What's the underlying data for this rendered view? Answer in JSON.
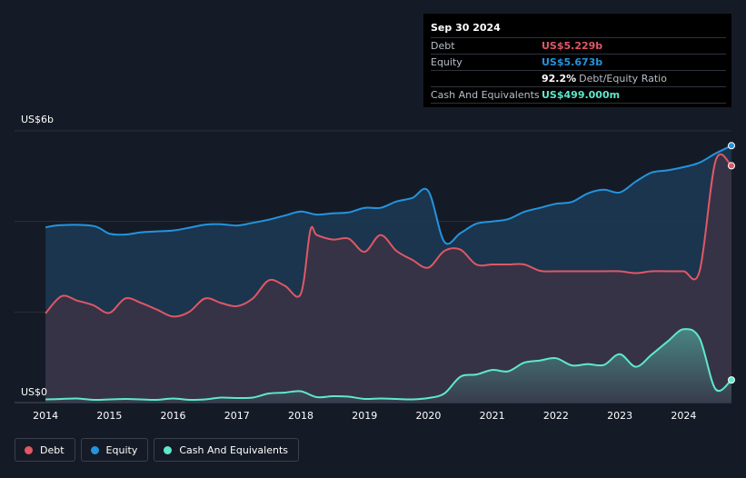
{
  "chart_data": {
    "type": "area",
    "title": "",
    "xlabel": "",
    "ylabel": "",
    "y_axis_labels": {
      "top": "US$6b",
      "bottom": "US$0"
    },
    "ylim": [
      0,
      6
    ],
    "xlim": [
      2013.97,
      2024.75
    ],
    "x_ticks": [
      "2014",
      "2015",
      "2016",
      "2017",
      "2018",
      "2019",
      "2020",
      "2021",
      "2022",
      "2023",
      "2024"
    ],
    "grid": true,
    "colors": {
      "debt": "#e05766",
      "equity": "#2394df",
      "cash": "#5ee8cc"
    },
    "series": [
      {
        "name": "Equity",
        "x": [
          2014.0,
          2014.25,
          2014.75,
          2015.0,
          2015.25,
          2015.5,
          2015.75,
          2016.0,
          2016.25,
          2016.5,
          2016.75,
          2017.0,
          2017.25,
          2017.5,
          2017.75,
          2018.0,
          2018.25,
          2018.5,
          2018.75,
          2019.0,
          2019.25,
          2019.5,
          2019.75,
          2020.0,
          2020.25,
          2020.5,
          2020.75,
          2021.0,
          2021.25,
          2021.5,
          2021.75,
          2022.0,
          2022.25,
          2022.5,
          2022.75,
          2023.0,
          2023.25,
          2023.5,
          2023.75,
          2024.0,
          2024.25,
          2024.5,
          2024.75
        ],
        "values": [
          3.87,
          3.92,
          3.9,
          3.73,
          3.71,
          3.76,
          3.78,
          3.8,
          3.86,
          3.93,
          3.94,
          3.91,
          3.97,
          4.04,
          4.13,
          4.22,
          4.15,
          4.18,
          4.2,
          4.3,
          4.3,
          4.44,
          4.52,
          4.67,
          3.55,
          3.74,
          3.95,
          4.0,
          4.05,
          4.21,
          4.3,
          4.39,
          4.43,
          4.62,
          4.7,
          4.64,
          4.88,
          5.08,
          5.13,
          5.2,
          5.3,
          5.5,
          5.673
        ]
      },
      {
        "name": "Debt",
        "x": [
          2014.0,
          2014.25,
          2014.5,
          2014.75,
          2015.0,
          2015.25,
          2015.5,
          2015.75,
          2016.0,
          2016.25,
          2016.5,
          2016.75,
          2017.0,
          2017.25,
          2017.5,
          2017.75,
          2018.0,
          2018.15,
          2018.25,
          2018.5,
          2018.75,
          2019.0,
          2019.25,
          2019.5,
          2019.75,
          2020.0,
          2020.25,
          2020.5,
          2020.75,
          2021.0,
          2021.25,
          2021.5,
          2021.75,
          2022.0,
          2022.25,
          2022.5,
          2022.75,
          2023.0,
          2023.25,
          2023.5,
          2023.75,
          2024.0,
          2024.25,
          2024.5,
          2024.75
        ],
        "values": [
          1.97,
          2.35,
          2.25,
          2.15,
          1.98,
          2.3,
          2.2,
          2.05,
          1.9,
          2.0,
          2.3,
          2.2,
          2.13,
          2.3,
          2.7,
          2.58,
          2.4,
          3.8,
          3.7,
          3.6,
          3.62,
          3.33,
          3.7,
          3.35,
          3.15,
          2.98,
          3.35,
          3.38,
          3.05,
          3.05,
          3.05,
          3.05,
          2.91,
          2.9,
          2.9,
          2.9,
          2.9,
          2.9,
          2.86,
          2.9,
          2.9,
          2.9,
          2.9,
          5.33,
          5.229
        ]
      },
      {
        "name": "Cash And Equivalents",
        "x": [
          2014.0,
          2014.25,
          2014.5,
          2014.75,
          2015.0,
          2015.25,
          2015.5,
          2015.75,
          2016.0,
          2016.25,
          2016.5,
          2016.75,
          2017.0,
          2017.25,
          2017.5,
          2017.75,
          2018.0,
          2018.25,
          2018.5,
          2018.75,
          2019.0,
          2019.25,
          2019.5,
          2019.75,
          2020.0,
          2020.25,
          2020.5,
          2020.75,
          2021.0,
          2021.25,
          2021.5,
          2021.75,
          2022.0,
          2022.25,
          2022.5,
          2022.75,
          2023.0,
          2023.25,
          2023.5,
          2023.75,
          2024.0,
          2024.25,
          2024.5,
          2024.75
        ],
        "values": [
          0.07,
          0.08,
          0.09,
          0.06,
          0.07,
          0.08,
          0.07,
          0.06,
          0.09,
          0.06,
          0.07,
          0.11,
          0.1,
          0.11,
          0.2,
          0.22,
          0.25,
          0.12,
          0.14,
          0.13,
          0.08,
          0.09,
          0.08,
          0.07,
          0.1,
          0.2,
          0.57,
          0.62,
          0.72,
          0.69,
          0.88,
          0.93,
          0.98,
          0.82,
          0.85,
          0.83,
          1.07,
          0.79,
          1.06,
          1.35,
          1.62,
          1.42,
          0.3,
          0.499
        ]
      }
    ],
    "tooltip": {
      "date": "Sep 30 2024",
      "rows": [
        {
          "label": "Debt",
          "value": "US$5.229b",
          "color": "#e05766"
        },
        {
          "label": "Equity",
          "value": "US$5.673b",
          "color": "#2394df"
        },
        {
          "label": "",
          "value": "92.2%",
          "suffix": "Debt/Equity Ratio",
          "color": "#ffffff"
        },
        {
          "label": "Cash And Equivalents",
          "value": "US$499.000m",
          "color": "#5ee8cc"
        }
      ]
    },
    "legend": [
      {
        "label": "Debt",
        "color": "#e05766"
      },
      {
        "label": "Equity",
        "color": "#2394df"
      },
      {
        "label": "Cash And Equivalents",
        "color": "#5ee8cc"
      }
    ]
  }
}
